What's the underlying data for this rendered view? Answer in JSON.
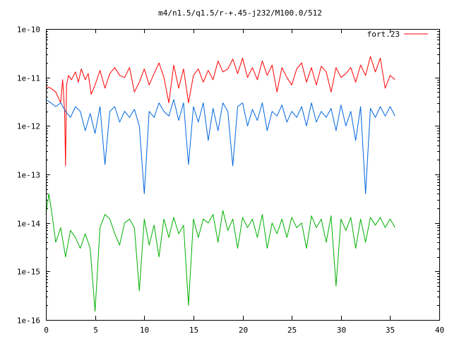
{
  "chart_data": {
    "type": "line",
    "title": "m4/n1.5/q1.5/r-+.45-j232/M100.0/512",
    "xlabel": "",
    "ylabel": "",
    "xlim": [
      0,
      40
    ],
    "ylim": [
      1e-16,
      1e-10
    ],
    "yscale": "log",
    "x_ticks": [
      0,
      5,
      10,
      15,
      20,
      25,
      30,
      35,
      40
    ],
    "x_tick_labels": [
      "0",
      "5",
      "10",
      "15",
      "20",
      "25",
      "30",
      "35",
      "40"
    ],
    "y_ticks": [
      1e-16,
      1e-15,
      1e-14,
      1e-13,
      1e-12,
      1e-11,
      1e-10
    ],
    "y_tick_labels": [
      "1e-16",
      "1e-15",
      "1e-14",
      "1e-13",
      "1e-12",
      "1e-11",
      "1e-10"
    ],
    "grid": false,
    "legend": {
      "position": "top-right",
      "entries": [
        {
          "label": "fort.23",
          "color": "#ff0000"
        }
      ]
    },
    "series": [
      {
        "name": "fort.23",
        "color": "#ff0000",
        "x": [
          0,
          0.5,
          1.0,
          1.5,
          1.7,
          1.9,
          2.0,
          2.1,
          2.3,
          2.6,
          3.0,
          3.3,
          3.6,
          4.0,
          4.3,
          4.6,
          5.0,
          5.5,
          6.0,
          6.5,
          7.0,
          7.5,
          8.0,
          8.5,
          9.0,
          9.5,
          10.0,
          10.5,
          11.0,
          11.5,
          12.0,
          12.5,
          13.0,
          13.5,
          14.0,
          14.5,
          15.0,
          15.5,
          16.0,
          16.5,
          17.0,
          17.5,
          18.0,
          18.5,
          19.0,
          19.5,
          20.0,
          20.5,
          21.0,
          21.5,
          22.0,
          22.5,
          23.0,
          23.5,
          24.0,
          24.5,
          25.0,
          25.5,
          26.0,
          26.5,
          27.0,
          27.5,
          28.0,
          28.5,
          29.0,
          29.5,
          30.0,
          30.5,
          31.0,
          31.5,
          32.0,
          32.5,
          33.0,
          33.5,
          34.0,
          34.5,
          35.0,
          35.5
        ],
        "y": [
          6.5e-12,
          6e-12,
          5e-12,
          3e-12,
          9e-12,
          2e-12,
          1.5e-13,
          7e-12,
          1.1e-11,
          9e-12,
          1.3e-11,
          8e-12,
          1.5e-11,
          9e-12,
          1.2e-11,
          4.5e-12,
          7e-12,
          1.4e-11,
          6e-12,
          1.2e-11,
          1.6e-11,
          1.1e-11,
          1e-11,
          1.6e-11,
          5e-12,
          8e-12,
          1.5e-11,
          7e-12,
          1.2e-11,
          2e-11,
          1e-11,
          3e-12,
          1.8e-11,
          6e-12,
          1.5e-11,
          3e-12,
          1.1e-11,
          1.5e-11,
          8e-12,
          1.4e-11,
          9e-12,
          2.2e-11,
          1.3e-11,
          1.5e-11,
          2.4e-11,
          1.2e-11,
          2.5e-11,
          1e-11,
          1.6e-11,
          9e-12,
          2.2e-11,
          1.1e-11,
          1.8e-11,
          5e-12,
          1.6e-11,
          1e-11,
          7e-12,
          1.5e-11,
          2e-11,
          8e-12,
          1.6e-11,
          7e-12,
          1.7e-11,
          1.3e-11,
          5e-12,
          1.6e-11,
          1e-11,
          1.2e-11,
          1.6e-11,
          8e-12,
          1.8e-11,
          1.1e-11,
          2.7e-11,
          1.3e-11,
          2.5e-11,
          6e-12,
          1.1e-11,
          9e-12
        ]
      },
      {
        "color": "#0066e0",
        "x": [
          0,
          0.5,
          1.0,
          1.5,
          2.0,
          2.5,
          3.0,
          3.5,
          4.0,
          4.5,
          5.0,
          5.5,
          6.0,
          6.5,
          7.0,
          7.5,
          8.0,
          8.5,
          9.0,
          9.5,
          10.0,
          10.5,
          11.0,
          11.5,
          12.0,
          12.5,
          13.0,
          13.5,
          14.0,
          14.5,
          15.0,
          15.5,
          16.0,
          16.5,
          17.0,
          17.5,
          18.0,
          18.5,
          19.0,
          19.5,
          20.0,
          20.5,
          21.0,
          21.5,
          22.0,
          22.5,
          23.0,
          23.5,
          24.0,
          24.5,
          25.0,
          25.5,
          26.0,
          26.5,
          27.0,
          27.5,
          28.0,
          28.5,
          29.0,
          29.5,
          30.0,
          30.5,
          31.0,
          31.5,
          32.0,
          32.5,
          33.0,
          33.5,
          34.0,
          34.5,
          35.0,
          35.5
        ],
        "y": [
          3.5e-12,
          3e-12,
          2.5e-12,
          3e-12,
          2e-12,
          1.5e-12,
          2.5e-12,
          2e-12,
          8e-13,
          1.8e-12,
          7e-13,
          2.5e-12,
          1.6e-13,
          2e-12,
          2.5e-12,
          1.2e-12,
          2e-12,
          1.5e-12,
          2.2e-12,
          1e-12,
          4e-14,
          2e-12,
          1.5e-12,
          3e-12,
          2e-12,
          1.6e-12,
          3.5e-12,
          1.3e-12,
          3e-12,
          1.6e-13,
          2.5e-12,
          1.2e-12,
          3e-12,
          5e-13,
          2.3e-12,
          8e-13,
          3e-12,
          2e-12,
          1.5e-13,
          2.5e-12,
          3e-12,
          1e-12,
          2.2e-12,
          1.3e-12,
          3e-12,
          8e-13,
          2e-12,
          1.6e-12,
          2.7e-12,
          1.2e-12,
          2e-12,
          1.5e-12,
          2.5e-12,
          1e-12,
          3e-12,
          1.2e-12,
          2e-12,
          1.5e-12,
          2.3e-12,
          8e-13,
          2.7e-12,
          1e-12,
          2e-12,
          5e-13,
          2.5e-12,
          4e-14,
          2.3e-12,
          1.5e-12,
          2.5e-12,
          1.6e-12,
          2.5e-12,
          1.6e-12
        ]
      },
      {
        "color": "#00b000",
        "x": [
          0,
          0.3,
          0.6,
          1.0,
          1.5,
          2.0,
          2.5,
          3.0,
          3.5,
          4.0,
          4.5,
          5.0,
          5.5,
          6.0,
          6.5,
          7.0,
          7.5,
          8.0,
          8.5,
          9.0,
          9.5,
          10.0,
          10.5,
          11.0,
          11.5,
          12.0,
          12.5,
          13.0,
          13.5,
          14.0,
          14.5,
          15.0,
          15.5,
          16.0,
          16.5,
          17.0,
          17.5,
          18.0,
          18.5,
          19.0,
          19.5,
          20.0,
          20.5,
          21.0,
          21.5,
          22.0,
          22.5,
          23.0,
          23.5,
          24.0,
          24.5,
          25.0,
          25.5,
          26.0,
          26.5,
          27.0,
          27.5,
          28.0,
          28.5,
          29.0,
          29.5,
          30.0,
          30.5,
          31.0,
          31.5,
          32.0,
          32.5,
          33.0,
          33.5,
          34.0,
          34.5,
          35.0,
          35.5
        ],
        "y": [
          1.5e-14,
          4e-14,
          1.6e-14,
          4e-15,
          8e-15,
          2e-15,
          7e-15,
          5e-15,
          3e-15,
          6e-15,
          3e-15,
          1.5e-16,
          8e-15,
          1.5e-14,
          1.2e-14,
          6e-15,
          3.5e-15,
          1e-14,
          1.2e-14,
          8e-15,
          4e-16,
          1.2e-14,
          3.5e-15,
          9e-15,
          2e-15,
          1.2e-14,
          5e-15,
          1.3e-14,
          6e-15,
          9e-15,
          2e-16,
          1.2e-14,
          5e-15,
          1.2e-14,
          1e-14,
          1.5e-14,
          4e-15,
          1.8e-14,
          7e-15,
          1.2e-14,
          3e-15,
          1.3e-14,
          8e-15,
          1.2e-14,
          5e-15,
          1.5e-14,
          3e-15,
          1e-14,
          6e-15,
          1.2e-14,
          5e-15,
          1.3e-14,
          8e-15,
          1e-14,
          3e-15,
          1.4e-14,
          8e-15,
          1.2e-14,
          4e-15,
          1.4e-14,
          5e-16,
          1.2e-14,
          7e-15,
          1.3e-14,
          3e-15,
          1.2e-14,
          4e-15,
          1.3e-14,
          9e-15,
          1.3e-14,
          8e-15,
          1.2e-14,
          8e-15
        ]
      }
    ]
  }
}
